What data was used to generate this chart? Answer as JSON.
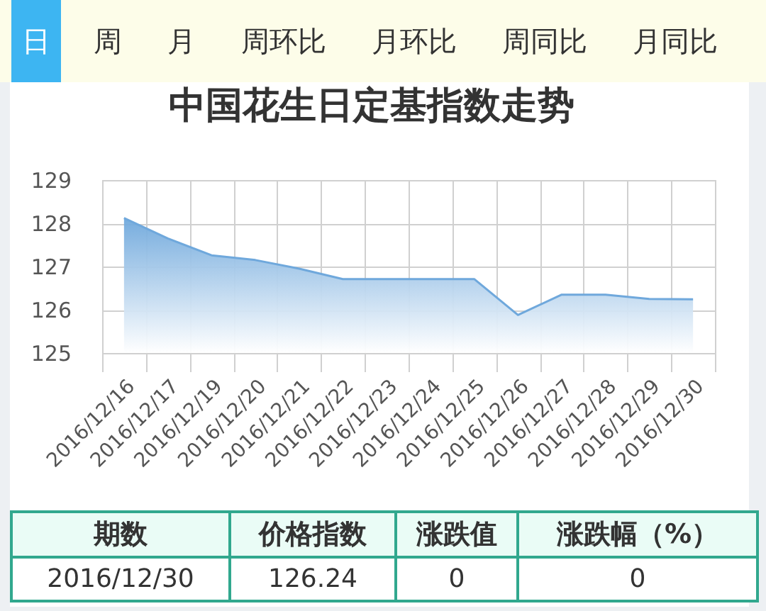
{
  "chart_data": [
    {
      "type": "other",
      "annotations": [
        "日",
        "周",
        "月",
        "周环比",
        "月环比",
        "周同比",
        "月同比"
      ]
    },
    {
      "type": "area",
      "title": "中国花生日定基指数走势",
      "categories": [
        "2016/12/16",
        "2016/12/17",
        "2016/12/19",
        "2016/12/20",
        "2016/12/21",
        "2016/12/22",
        "2016/12/23",
        "2016/12/24",
        "2016/12/25",
        "2016/12/26",
        "2016/12/27",
        "2016/12/28",
        "2016/12/29",
        "2016/12/30"
      ],
      "values": [
        128.12,
        127.65,
        127.26,
        127.15,
        126.95,
        126.71,
        126.71,
        126.71,
        126.71,
        125.88,
        126.35,
        126.35,
        126.25,
        126.24
      ],
      "color": "#6fa8dc",
      "ylim": [
        125,
        129
      ],
      "yticks": [
        125,
        126,
        127,
        128,
        129
      ],
      "grid": true
    },
    {
      "type": "other",
      "annotations": [
        "期数",
        "价格指数",
        "涨跌值",
        "涨跌幅（%）",
        "2016/12/30",
        "126.24",
        "0",
        "0"
      ]
    }
  ]
}
